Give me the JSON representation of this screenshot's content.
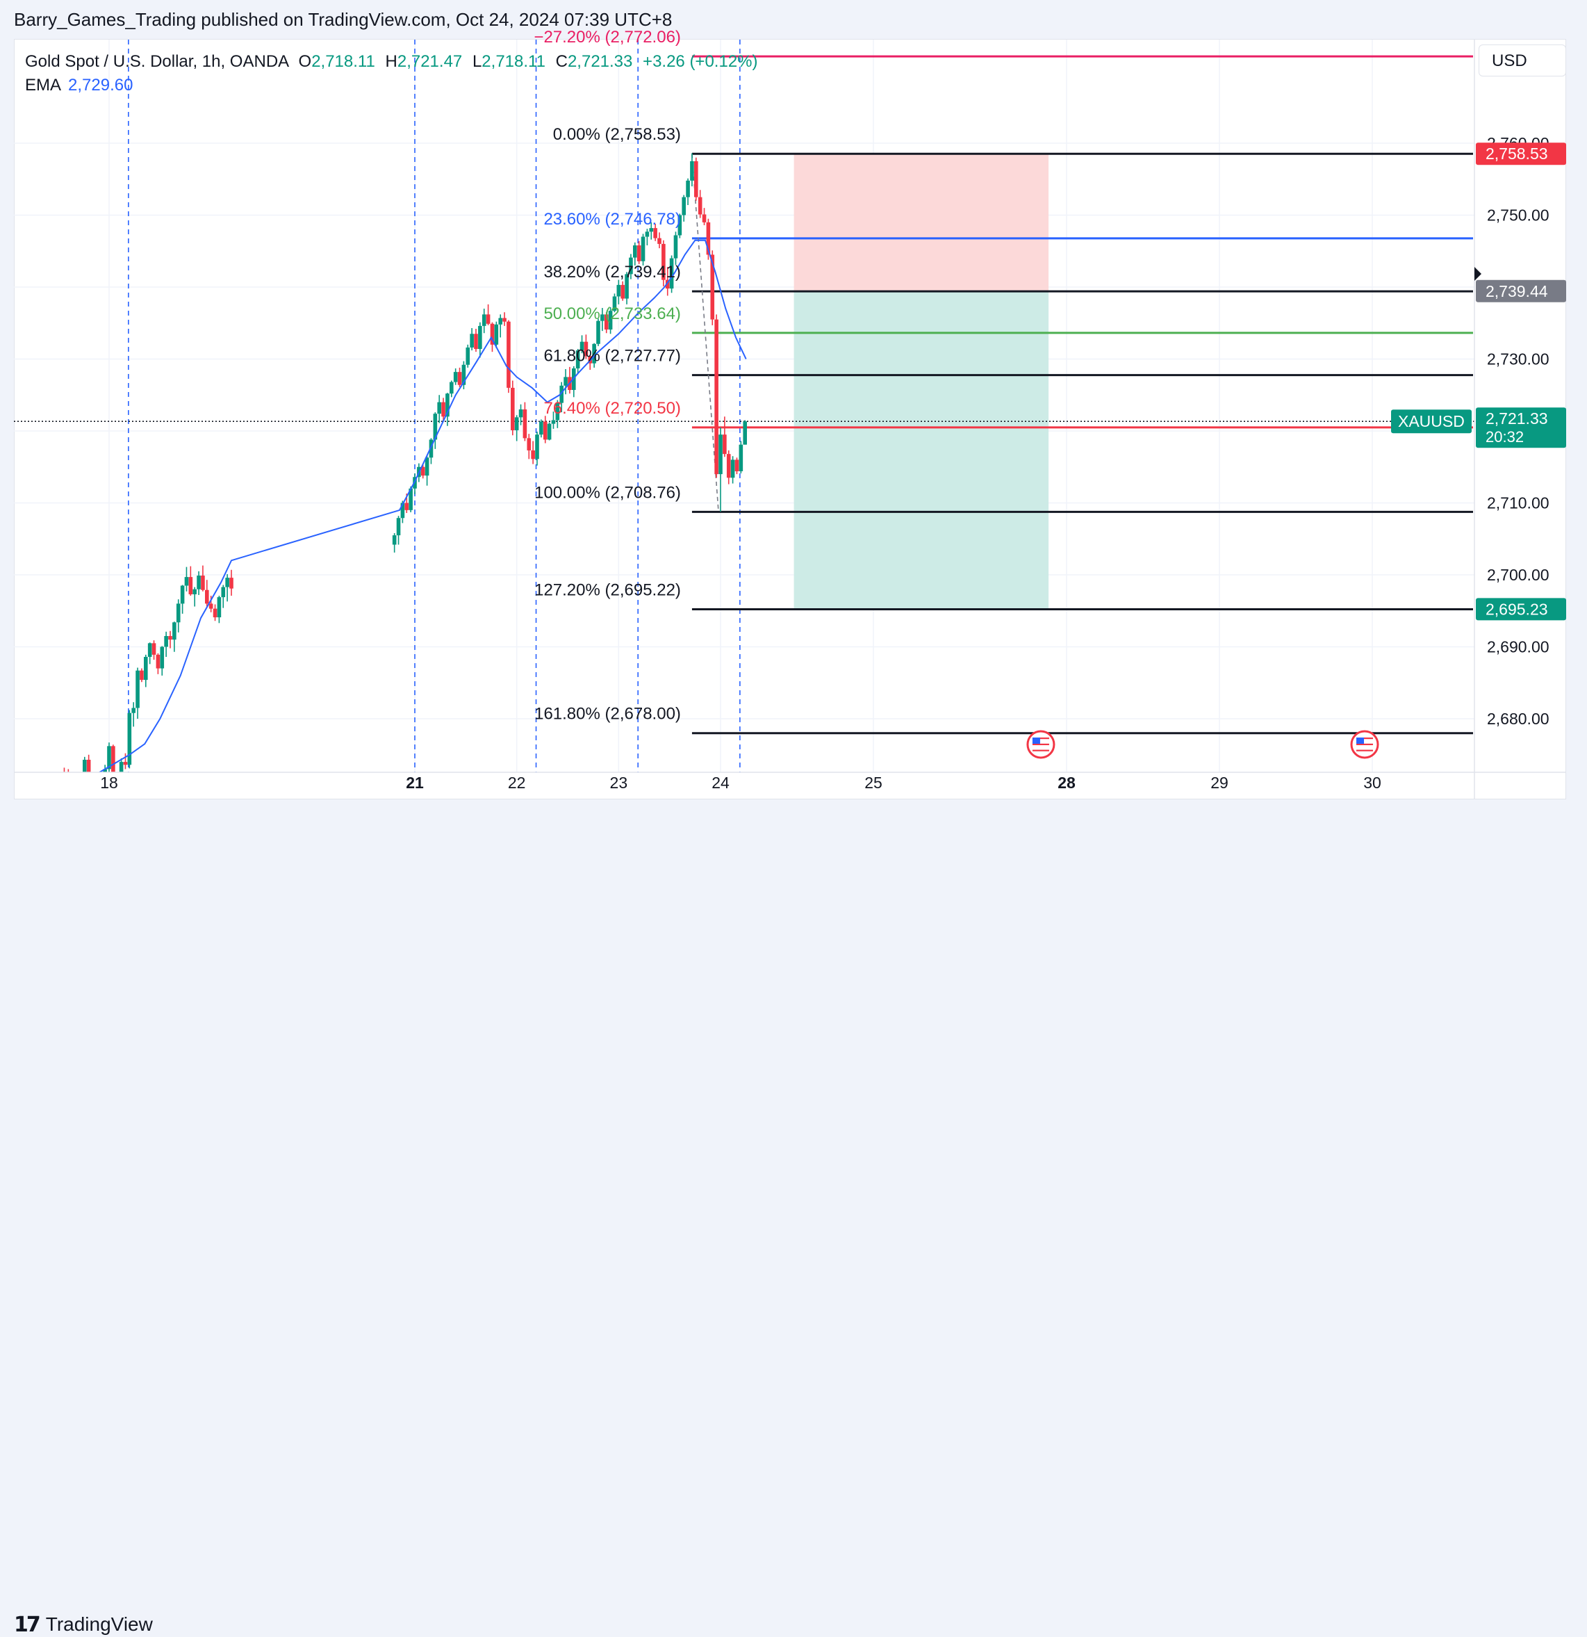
{
  "header": {
    "published": "Barry_Games_Trading published on TradingView.com, Oct 24, 2024 07:39 UTC+8"
  },
  "legend": {
    "symbol": "Gold Spot / U.S. Dollar, 1h, OANDA",
    "open_key": "O",
    "open": "2,718.11",
    "high_key": "H",
    "high": "2,721.47",
    "low_key": "L",
    "low": "2,718.11",
    "close_key": "C",
    "close": "2,721.33",
    "change": "+3.26 (+0.12%)",
    "ema_label": "EMA",
    "ema_value": "2,729.60"
  },
  "currency_button": "USD",
  "footer": {
    "brand": "TradingView"
  },
  "colors": {
    "up": "#089981",
    "down": "#f23645",
    "ema": "#2962ff",
    "stop_zone": "#fcd9d9",
    "target_zone": "#cdebe6"
  },
  "chart_data": {
    "type": "candlestick",
    "symbol": "XAUUSD",
    "timeframe": "1h",
    "y_axis": {
      "range": [
        2665,
        2777
      ],
      "ticks": [
        {
          "value": 2680,
          "label": "2,680.00"
        },
        {
          "value": 2690,
          "label": "2,690.00"
        },
        {
          "value": 2700,
          "label": "2,700.00"
        },
        {
          "value": 2710,
          "label": "2,710.00"
        },
        {
          "value": 2730,
          "label": "2,730.00"
        },
        {
          "value": 2750,
          "label": "2,750.00"
        },
        {
          "value": 2760,
          "label": "2,760.00"
        }
      ]
    },
    "x_axis": {
      "ticks": [
        {
          "label": "18",
          "day": 18,
          "bold": false
        },
        {
          "label": "21",
          "day": 21,
          "bold": true
        },
        {
          "label": "22",
          "day": 22,
          "bold": false
        },
        {
          "label": "23",
          "day": 23,
          "bold": false
        },
        {
          "label": "24",
          "day": 24,
          "bold": false
        },
        {
          "label": "25",
          "day": 25,
          "bold": false
        },
        {
          "label": "28",
          "day": 28,
          "bold": true
        },
        {
          "label": "29",
          "day": 29,
          "bold": false
        },
        {
          "label": "30",
          "day": 30,
          "bold": false
        }
      ]
    },
    "price_badges": [
      {
        "label": "2,758.53",
        "value": 2758.53,
        "color": "#f23645"
      },
      {
        "label": "2,739.44",
        "value": 2739.44,
        "color": "#787b86"
      },
      {
        "label": "2,721.33",
        "sub": "20:32",
        "value": 2721.33,
        "color": "#089981"
      },
      {
        "label": "2,695.23",
        "value": 2695.23,
        "color": "#089981"
      }
    ],
    "symbol_badge": {
      "label": "XAUUSD",
      "value": 2721.33
    },
    "current_price": 2721.33,
    "fib_levels": [
      {
        "label": "−27.20% (2,772.06)",
        "value": 2772.06,
        "color": "#e91e63"
      },
      {
        "label": "0.00% (2,758.53)",
        "value": 2758.53,
        "color": "#131722"
      },
      {
        "label": "23.60% (2,746.78)",
        "value": 2746.78,
        "color": "#2962ff"
      },
      {
        "label": "38.20% (2,739.41)",
        "value": 2739.41,
        "color": "#131722"
      },
      {
        "label": "50.00% (2,733.64)",
        "value": 2733.64,
        "color": "#4caf50"
      },
      {
        "label": "61.80% (2,727.77)",
        "value": 2727.77,
        "color": "#131722"
      },
      {
        "label": "76.40% (2,720.50)",
        "value": 2720.5,
        "color": "#f23645"
      },
      {
        "label": "100.00% (2,708.76)",
        "value": 2708.76,
        "color": "#131722"
      },
      {
        "label": "127.20% (2,695.22)",
        "value": 2695.22,
        "color": "#131722"
      },
      {
        "label": "161.80% (2,678.00)",
        "value": 2678.0,
        "color": "#131722"
      }
    ],
    "position": {
      "side": "short",
      "entry": 2739.44,
      "stop": 2758.53,
      "target": 2695.23,
      "start_day": 24.48,
      "end_day": 27.72
    },
    "session_breaks_day": [
      18.19,
      21.0,
      22.19,
      23.19,
      24.19
    ],
    "event_markers_day": [
      27.6,
      29.95
    ],
    "ema": [
      [
        17.29,
        2666.0
      ],
      [
        17.6,
        2669.0
      ],
      [
        17.9,
        2672.5
      ],
      [
        18.2,
        2675.0
      ],
      [
        18.35,
        2676.5
      ],
      [
        18.5,
        2680.0
      ],
      [
        18.7,
        2686.0
      ],
      [
        18.9,
        2694.0
      ],
      [
        19.1,
        2699.0
      ],
      [
        19.2,
        2702.0
      ],
      [
        20.85,
        2709.0
      ],
      [
        21.0,
        2713.0
      ],
      [
        21.2,
        2719.0
      ],
      [
        21.4,
        2725.0
      ],
      [
        21.6,
        2729.5
      ],
      [
        21.75,
        2733.0
      ],
      [
        21.9,
        2729.0
      ],
      [
        22.0,
        2727.5
      ],
      [
        22.15,
        2726.0
      ],
      [
        22.3,
        2724.0
      ],
      [
        22.42,
        2725.0
      ],
      [
        22.6,
        2728.0
      ],
      [
        22.8,
        2731.0
      ],
      [
        23.0,
        2733.5
      ],
      [
        23.2,
        2736.5
      ],
      [
        23.35,
        2738.5
      ],
      [
        23.45,
        2740.0
      ],
      [
        23.55,
        2742.0
      ],
      [
        23.65,
        2744.5
      ],
      [
        23.75,
        2746.5
      ],
      [
        23.85,
        2746.5
      ],
      [
        23.95,
        2742.0
      ],
      [
        24.05,
        2737.0
      ],
      [
        24.15,
        2733.0
      ],
      [
        24.25,
        2730.0
      ]
    ],
    "candles": [
      [
        17.28,
        2666.0,
        2668.5,
        2664.0,
        2668.0
      ],
      [
        17.32,
        2668.0,
        2668.4,
        2665.0,
        2666.1
      ],
      [
        17.36,
        2666.1,
        2668.2,
        2664.5,
        2668.0
      ],
      [
        17.4,
        2668.0,
        2670.8,
        2667.1,
        2669.5
      ],
      [
        17.44,
        2669.5,
        2671.0,
        2666.6,
        2667.3
      ],
      [
        17.48,
        2667.3,
        2670.4,
        2666.5,
        2670.1
      ],
      [
        17.52,
        2670.1,
        2672.6,
        2668.9,
        2671.9
      ],
      [
        17.56,
        2671.9,
        2673.2,
        2670.8,
        2671.3
      ],
      [
        17.6,
        2671.3,
        2673.0,
        2669.2,
        2669.4
      ],
      [
        17.64,
        2669.4,
        2670.7,
        2667.2,
        2670.0
      ],
      [
        17.68,
        2670.0,
        2671.8,
        2668.4,
        2668.6
      ],
      [
        17.72,
        2668.6,
        2670.3,
        2666.3,
        2669.8
      ],
      [
        17.76,
        2669.8,
        2674.7,
        2669.0,
        2674.3
      ],
      [
        17.8,
        2674.3,
        2675.0,
        2670.7,
        2672.1
      ],
      [
        17.84,
        2672.1,
        2672.4,
        2669.5,
        2670.0
      ],
      [
        17.88,
        2670.0,
        2671.6,
        2668.9,
        2669.7
      ],
      [
        17.92,
        2669.7,
        2672.1,
        2668.3,
        2671.9
      ],
      [
        17.96,
        2671.9,
        2673.6,
        2670.2,
        2673.0
      ],
      [
        18.0,
        2673.0,
        2676.7,
        2672.1,
        2676.2
      ],
      [
        18.04,
        2676.2,
        2676.4,
        2671.0,
        2671.5
      ],
      [
        18.08,
        2671.5,
        2672.0,
        2669.2,
        2670.5
      ],
      [
        18.12,
        2670.5,
        2674.5,
        2670.4,
        2674.0
      ],
      [
        18.16,
        2674.0,
        2675.2,
        2673.0,
        2673.6
      ],
      [
        18.2,
        2673.6,
        2681.2,
        2673.1,
        2680.8
      ],
      [
        18.24,
        2680.8,
        2682.3,
        2678.9,
        2681.5
      ],
      [
        18.28,
        2681.5,
        2687.1,
        2680.0,
        2686.7
      ],
      [
        18.32,
        2686.7,
        2687.0,
        2685.1,
        2685.4
      ],
      [
        18.36,
        2685.4,
        2688.9,
        2684.4,
        2688.6
      ],
      [
        18.4,
        2688.6,
        2690.6,
        2687.6,
        2690.5
      ],
      [
        18.44,
        2690.5,
        2690.9,
        2688.2,
        2688.9
      ],
      [
        18.48,
        2688.9,
        2689.1,
        2686.2,
        2687.0
      ],
      [
        18.52,
        2687.0,
        2690.1,
        2686.0,
        2690.0
      ],
      [
        18.56,
        2690.0,
        2692.1,
        2688.6,
        2691.5
      ],
      [
        18.6,
        2691.5,
        2692.2,
        2689.8,
        2691.0
      ],
      [
        18.64,
        2691.0,
        2693.5,
        2689.3,
        2693.4
      ],
      [
        18.68,
        2693.4,
        2696.6,
        2692.0,
        2696.0
      ],
      [
        18.72,
        2696.0,
        2698.6,
        2694.6,
        2698.5
      ],
      [
        18.76,
        2698.5,
        2701.1,
        2697.7,
        2699.7
      ],
      [
        18.8,
        2699.7,
        2701.2,
        2697.1,
        2697.3
      ],
      [
        18.84,
        2697.3,
        2698.3,
        2695.6,
        2698.0
      ],
      [
        18.88,
        2698.0,
        2700.5,
        2697.2,
        2699.9
      ],
      [
        18.92,
        2699.9,
        2701.3,
        2697.7,
        2697.9
      ],
      [
        18.96,
        2697.9,
        2699.3,
        2695.6,
        2696.0
      ],
      [
        19.0,
        2696.0,
        2697.1,
        2694.8,
        2695.3
      ],
      [
        19.04,
        2695.3,
        2695.9,
        2693.6,
        2694.1
      ],
      [
        19.08,
        2694.1,
        2697.1,
        2693.3,
        2696.9
      ],
      [
        19.12,
        2696.9,
        2698.6,
        2695.4,
        2698.3
      ],
      [
        19.16,
        2698.3,
        2700.1,
        2696.3,
        2699.6
      ],
      [
        19.2,
        2699.6,
        2700.7,
        2697.1,
        2698.1
      ],
      [
        20.8,
        2704.2,
        2705.8,
        2703.1,
        2705.5
      ],
      [
        20.84,
        2705.5,
        2708.2,
        2704.2,
        2707.9
      ],
      [
        20.88,
        2707.9,
        2710.3,
        2707.2,
        2710.0
      ],
      [
        20.92,
        2710.0,
        2711.3,
        2708.6,
        2709.0
      ],
      [
        20.96,
        2709.0,
        2712.3,
        2708.7,
        2712.0
      ],
      [
        21.0,
        2712.0,
        2714.1,
        2711.2,
        2713.6
      ],
      [
        21.04,
        2713.6,
        2715.5,
        2712.9,
        2715.0
      ],
      [
        21.08,
        2715.0,
        2715.3,
        2713.4,
        2713.8
      ],
      [
        21.12,
        2713.8,
        2716.5,
        2712.4,
        2716.3
      ],
      [
        21.16,
        2716.3,
        2719.0,
        2715.4,
        2718.8
      ],
      [
        21.2,
        2718.8,
        2722.6,
        2717.5,
        2722.4
      ],
      [
        21.24,
        2722.4,
        2725.0,
        2721.1,
        2724.0
      ],
      [
        21.28,
        2724.0,
        2724.6,
        2721.5,
        2722.0
      ],
      [
        21.32,
        2722.0,
        2725.3,
        2720.7,
        2725.2
      ],
      [
        21.36,
        2725.2,
        2727.0,
        2724.7,
        2726.8
      ],
      [
        21.4,
        2726.8,
        2728.7,
        2726.4,
        2728.2
      ],
      [
        21.44,
        2728.2,
        2728.8,
        2726.1,
        2726.4
      ],
      [
        21.48,
        2726.4,
        2729.7,
        2725.8,
        2729.2
      ],
      [
        21.52,
        2729.2,
        2732.0,
        2728.8,
        2731.6
      ],
      [
        21.56,
        2731.6,
        2734.3,
        2731.2,
        2733.5
      ],
      [
        21.6,
        2733.5,
        2734.2,
        2731.0,
        2731.4
      ],
      [
        21.64,
        2731.4,
        2735.1,
        2730.2,
        2734.6
      ],
      [
        21.68,
        2734.6,
        2737.0,
        2733.6,
        2736.2
      ],
      [
        21.72,
        2736.2,
        2737.6,
        2734.7,
        2734.9
      ],
      [
        21.76,
        2734.9,
        2735.1,
        2731.0,
        2732.0
      ],
      [
        21.8,
        2732.0,
        2735.2,
        2731.5,
        2734.8
      ],
      [
        21.84,
        2734.8,
        2736.2,
        2733.0,
        2735.7
      ],
      [
        21.88,
        2735.7,
        2736.5,
        2734.6,
        2735.2
      ],
      [
        21.92,
        2735.2,
        2735.4,
        2725.3,
        2726.0
      ],
      [
        21.96,
        2726.0,
        2727.0,
        2719.4,
        2720.1
      ],
      [
        22.0,
        2720.1,
        2722.2,
        2718.6,
        2721.9
      ],
      [
        22.04,
        2721.9,
        2723.7,
        2720.8,
        2723.0
      ],
      [
        22.08,
        2723.0,
        2724.0,
        2718.6,
        2719.0
      ],
      [
        22.12,
        2719.0,
        2719.6,
        2716.1,
        2717.3
      ],
      [
        22.16,
        2717.3,
        2718.6,
        2715.4,
        2716.1
      ],
      [
        22.2,
        2716.1,
        2719.9,
        2715.2,
        2719.5
      ],
      [
        22.24,
        2719.5,
        2721.6,
        2719.1,
        2721.3
      ],
      [
        22.28,
        2721.3,
        2722.1,
        2718.3,
        2718.8
      ],
      [
        22.32,
        2718.8,
        2721.2,
        2718.7,
        2721.0
      ],
      [
        22.36,
        2721.0,
        2722.7,
        2720.3,
        2721.5
      ],
      [
        22.4,
        2721.5,
        2724.3,
        2720.4,
        2723.9
      ],
      [
        22.44,
        2723.9,
        2726.8,
        2722.6,
        2726.3
      ],
      [
        22.48,
        2726.3,
        2728.6,
        2725.1,
        2727.5
      ],
      [
        22.52,
        2727.5,
        2728.9,
        2725.2,
        2725.7
      ],
      [
        22.56,
        2725.7,
        2729.0,
        2724.7,
        2728.7
      ],
      [
        22.6,
        2728.7,
        2731.4,
        2727.9,
        2731.2
      ],
      [
        22.64,
        2731.2,
        2733.3,
        2730.8,
        2732.4
      ],
      [
        22.68,
        2732.4,
        2733.4,
        2730.0,
        2730.4
      ],
      [
        22.72,
        2730.4,
        2730.5,
        2728.5,
        2729.4
      ],
      [
        22.76,
        2729.4,
        2732.2,
        2728.8,
        2732.1
      ],
      [
        22.8,
        2732.1,
        2735.6,
        2731.8,
        2735.3
      ],
      [
        22.84,
        2735.3,
        2737.1,
        2733.9,
        2736.2
      ],
      [
        22.88,
        2736.2,
        2736.5,
        2733.6,
        2734.1
      ],
      [
        22.92,
        2734.1,
        2737.2,
        2733.5,
        2736.7
      ],
      [
        22.96,
        2736.7,
        2739.1,
        2736.5,
        2738.7
      ],
      [
        23.0,
        2738.7,
        2741.0,
        2737.6,
        2740.3
      ],
      [
        23.04,
        2740.3,
        2740.8,
        2738.1,
        2738.4
      ],
      [
        23.08,
        2738.4,
        2742.1,
        2737.6,
        2741.8
      ],
      [
        23.12,
        2741.8,
        2744.6,
        2741.1,
        2744.1
      ],
      [
        23.16,
        2744.1,
        2746.2,
        2743.0,
        2745.8
      ],
      [
        23.2,
        2745.8,
        2746.4,
        2743.2,
        2743.6
      ],
      [
        23.24,
        2743.6,
        2747.4,
        2743.0,
        2747.0
      ],
      [
        23.28,
        2747.0,
        2748.1,
        2745.8,
        2747.7
      ],
      [
        23.32,
        2747.7,
        2749.0,
        2746.6,
        2748.2
      ],
      [
        23.36,
        2748.2,
        2748.8,
        2746.4,
        2746.8
      ],
      [
        23.4,
        2746.8,
        2747.6,
        2745.4,
        2746.0
      ],
      [
        23.44,
        2746.0,
        2746.5,
        2740.1,
        2741.0
      ],
      [
        23.48,
        2741.0,
        2742.8,
        2738.8,
        2739.8
      ],
      [
        23.52,
        2739.8,
        2744.4,
        2739.2,
        2744.0
      ],
      [
        23.56,
        2744.0,
        2747.7,
        2743.1,
        2747.2
      ],
      [
        23.6,
        2747.2,
        2750.2,
        2746.8,
        2750.0
      ],
      [
        23.64,
        2750.0,
        2752.8,
        2749.1,
        2752.5
      ],
      [
        23.68,
        2752.5,
        2755.1,
        2751.4,
        2754.8
      ],
      [
        23.72,
        2754.8,
        2758.6,
        2754.0,
        2757.5
      ],
      [
        23.76,
        2757.5,
        2758.0,
        2752.0,
        2752.5
      ],
      [
        23.8,
        2752.5,
        2753.5,
        2749.6,
        2750.1
      ],
      [
        23.84,
        2750.1,
        2751.0,
        2748.6,
        2749.0
      ],
      [
        23.88,
        2749.0,
        2749.5,
        2743.8,
        2744.5
      ],
      [
        23.92,
        2744.5,
        2745.1,
        2734.7,
        2735.5
      ],
      [
        23.96,
        2735.5,
        2736.2,
        2713.5,
        2714.0
      ],
      [
        24.0,
        2714.0,
        2720.5,
        2708.8,
        2719.5
      ],
      [
        24.04,
        2719.5,
        2722.0,
        2716.4,
        2716.8
      ],
      [
        24.08,
        2716.8,
        2717.3,
        2712.6,
        2713.5
      ],
      [
        24.12,
        2713.5,
        2716.5,
        2712.7,
        2716.0
      ],
      [
        24.16,
        2716.0,
        2716.3,
        2714.0,
        2714.4
      ],
      [
        24.2,
        2714.4,
        2718.6,
        2714.1,
        2718.1
      ],
      [
        24.24,
        2718.1,
        2721.5,
        2718.1,
        2721.33
      ]
    ]
  }
}
